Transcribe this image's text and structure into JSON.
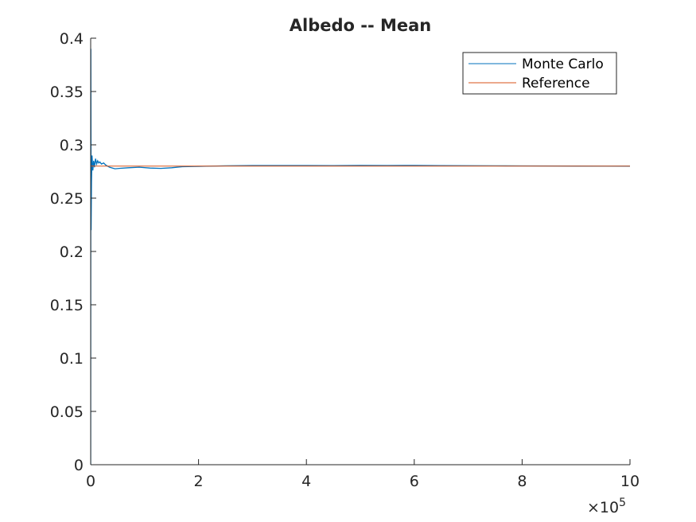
{
  "chart_data": {
    "type": "line",
    "title": "Albedo -- Mean",
    "xlabel": "",
    "ylabel": "",
    "xlim": [
      0,
      1000000
    ],
    "ylim": [
      0,
      0.4
    ],
    "x_exponent_label": "×10",
    "x_exponent_power": "5",
    "x_ticks": [
      0,
      200000,
      400000,
      600000,
      800000,
      1000000
    ],
    "x_tick_labels": [
      "0",
      "2",
      "4",
      "6",
      "8",
      "10"
    ],
    "y_ticks": [
      0,
      0.05,
      0.1,
      0.15,
      0.2,
      0.25,
      0.3,
      0.35,
      0.4
    ],
    "y_tick_labels": [
      "0",
      "0.05",
      "0.1",
      "0.15",
      "0.2",
      "0.25",
      "0.3",
      "0.35",
      "0.4"
    ],
    "grid": false,
    "legend_position": "top-right",
    "series": [
      {
        "name": "Monte Carlo",
        "color": "#0072BD",
        "x": [
          0,
          300,
          800,
          1500,
          2500,
          4000,
          5500,
          7000,
          9000,
          11000,
          13000,
          15000,
          17000,
          20000,
          24000,
          28000,
          35000,
          45000,
          55000,
          70000,
          90000,
          110000,
          130000,
          150000,
          170000,
          200000,
          250000,
          300000,
          350000,
          400000,
          450000,
          500000,
          550000,
          600000,
          650000,
          700000,
          750000,
          800000,
          900000,
          1000000
        ],
        "y": [
          0.0,
          0.39,
          0.22,
          0.265,
          0.29,
          0.276,
          0.285,
          0.279,
          0.287,
          0.282,
          0.285,
          0.283,
          0.284,
          0.282,
          0.283,
          0.281,
          0.279,
          0.2775,
          0.278,
          0.2785,
          0.279,
          0.2782,
          0.2779,
          0.2785,
          0.2795,
          0.2798,
          0.2803,
          0.2806,
          0.2806,
          0.2806,
          0.2805,
          0.2807,
          0.2806,
          0.2807,
          0.2805,
          0.2804,
          0.2803,
          0.2802,
          0.2801,
          0.28
        ]
      },
      {
        "name": "Reference",
        "color": "#D95319",
        "x": [
          0,
          1000000
        ],
        "y": [
          0.28,
          0.28
        ]
      }
    ]
  }
}
